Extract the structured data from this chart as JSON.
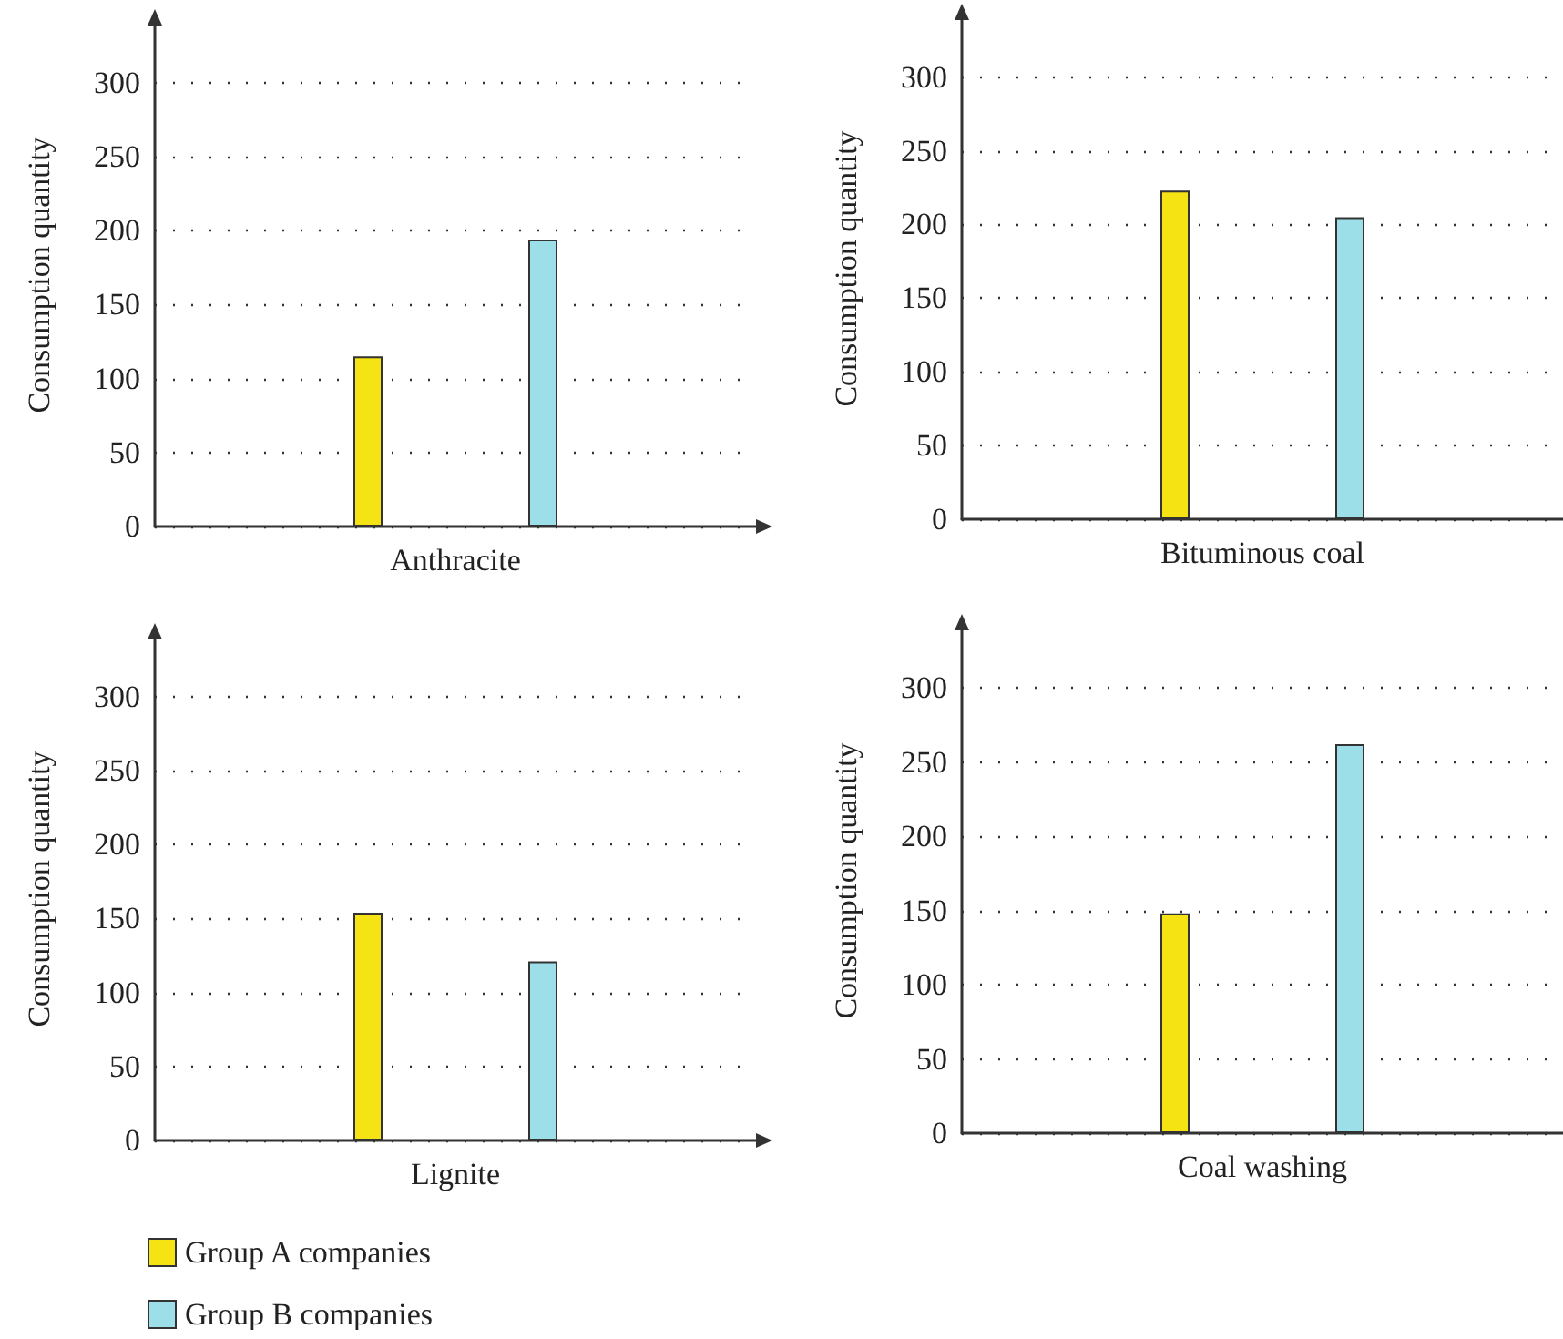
{
  "chart_data": [
    {
      "type": "bar",
      "categories": [
        "Anthracite"
      ],
      "ylabel": "Consumption quantity",
      "ylim": [
        0,
        340
      ],
      "yticks": [
        0,
        50,
        100,
        150,
        200,
        250,
        300
      ],
      "grid": "y",
      "legend": false,
      "series": [
        {
          "color": "#f5e314",
          "values": [
            115
          ]
        },
        {
          "color": "#9ddfe8",
          "values": [
            194
          ]
        }
      ]
    },
    {
      "type": "bar",
      "categories": [
        "Bituminous coal"
      ],
      "ylabel": "Consumption quantity",
      "ylim": [
        0,
        340
      ],
      "yticks": [
        0,
        50,
        100,
        150,
        200,
        250,
        300
      ],
      "grid": "y",
      "legend": false,
      "series": [
        {
          "color": "#f5e314",
          "values": [
            223
          ]
        },
        {
          "color": "#9ddfe8",
          "values": [
            205
          ]
        }
      ]
    },
    {
      "type": "bar",
      "categories": [
        "Lignite"
      ],
      "ylabel": "Consumption quantity",
      "ylim": [
        0,
        340
      ],
      "yticks": [
        0,
        50,
        100,
        150,
        200,
        250,
        300
      ],
      "grid": "y",
      "legend": "bottom left",
      "series": [
        {
          "name": "Group A companies",
          "color": "#f5e314",
          "values": [
            154
          ]
        },
        {
          "name": "Group B companies",
          "color": "#9ddfe8",
          "values": [
            121
          ]
        }
      ]
    },
    {
      "type": "bar",
      "categories": [
        "Coal washing"
      ],
      "ylabel": "Consumption quantity",
      "ylim": [
        0,
        340
      ],
      "yticks": [
        0,
        50,
        100,
        150,
        200,
        250,
        300
      ],
      "grid": "y",
      "legend": false,
      "series": [
        {
          "color": "#f5e314",
          "values": [
            148
          ]
        },
        {
          "color": "#9ddfe8",
          "values": [
            262
          ]
        }
      ]
    }
  ]
}
